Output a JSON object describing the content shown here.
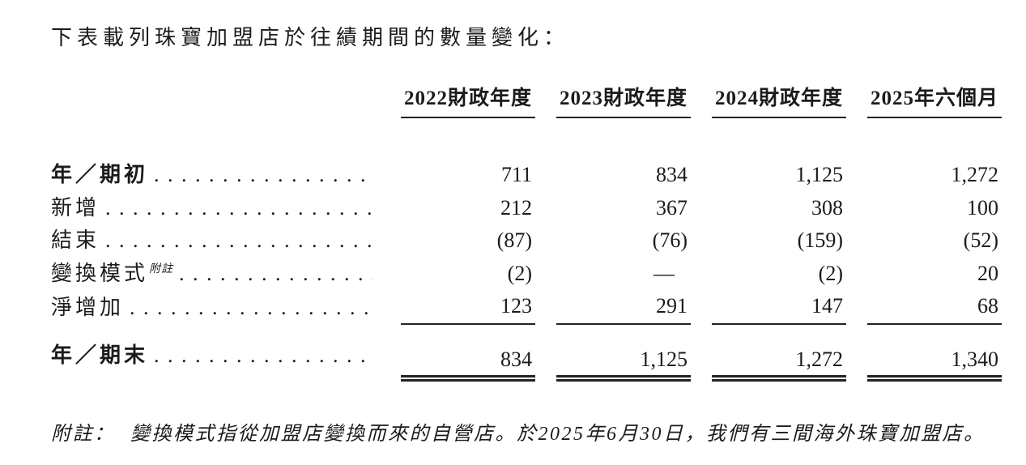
{
  "title": "下表載列珠寶加盟店於往績期間的數量變化：",
  "table": {
    "columns": [
      "2022財政年度",
      "2023財政年度",
      "2024財政年度",
      "2025年六個月"
    ],
    "rows": [
      {
        "label": "年／期初",
        "values": [
          "711",
          "834",
          "1,125",
          "1,272"
        ]
      },
      {
        "label": "新增",
        "values": [
          "212",
          "367",
          "308",
          "100"
        ]
      },
      {
        "label": "結束",
        "values": [
          "(87)",
          "(76)",
          "(159)",
          "(52)"
        ]
      },
      {
        "label": "變換模式",
        "superscript": "附註",
        "values": [
          "(2)",
          "—",
          "(2)",
          "20"
        ]
      },
      {
        "label": "淨增加",
        "values": [
          "123",
          "291",
          "147",
          "68"
        ]
      },
      {
        "label": "年／期末",
        "values": [
          "834",
          "1,125",
          "1,272",
          "1,340"
        ]
      }
    ]
  },
  "footnote": {
    "label": "附註：",
    "text": "變換模式指從加盟店變換而來的自營店。於2025年6月30日，我們有三間海外珠寶加盟店。"
  }
}
